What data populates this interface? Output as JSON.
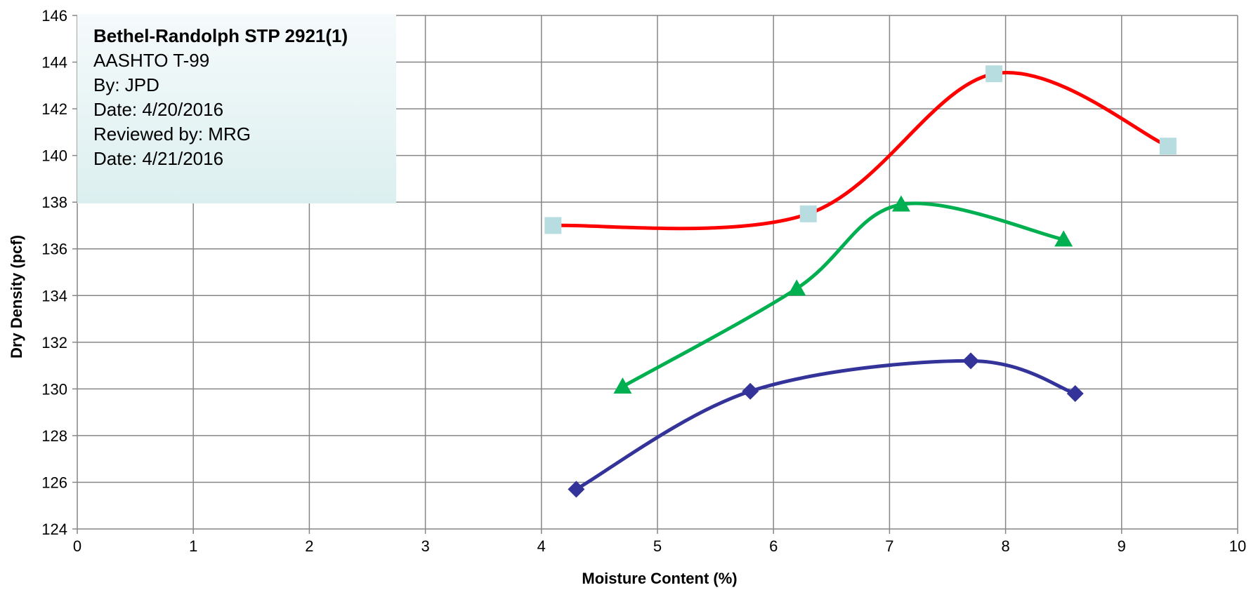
{
  "chart_data": {
    "type": "line",
    "title": "",
    "xlabel": "Moisture Content (%)",
    "ylabel": "Dry Density (pcf)",
    "xlim": [
      0,
      10
    ],
    "ylim": [
      124,
      146
    ],
    "x_ticks": [
      "0",
      "1",
      "2",
      "3",
      "4",
      "5",
      "6",
      "7",
      "8",
      "9",
      "10"
    ],
    "y_ticks": [
      "124",
      "126",
      "128",
      "130",
      "132",
      "134",
      "136",
      "138",
      "140",
      "142",
      "144",
      "146"
    ],
    "grid": true,
    "legend": "none",
    "series": [
      {
        "color": "#ff0000",
        "marker": "square",
        "marker_color": "#b7dde0",
        "smooth": true,
        "x": [
          4.1,
          6.3,
          7.9,
          9.4
        ],
        "y": [
          137.0,
          137.5,
          143.5,
          140.4
        ]
      },
      {
        "color": "#00b050",
        "marker": "triangle",
        "marker_color": "#00b050",
        "smooth": true,
        "x": [
          4.7,
          6.2,
          7.1,
          8.5
        ],
        "y": [
          130.1,
          134.3,
          137.9,
          136.4
        ]
      },
      {
        "color": "#333399",
        "marker": "diamond",
        "marker_color": "#333399",
        "smooth": true,
        "x": [
          4.3,
          5.8,
          7.7,
          8.6
        ],
        "y": [
          125.7,
          129.9,
          131.2,
          129.8
        ]
      }
    ]
  },
  "info_box": {
    "title": "Bethel-Randolph STP 2921(1)",
    "lines": [
      "AASHTO T-99",
      "By: JPD",
      "Date: 4/20/2016",
      "Reviewed by: MRG",
      "Date: 4/21/2016"
    ]
  }
}
